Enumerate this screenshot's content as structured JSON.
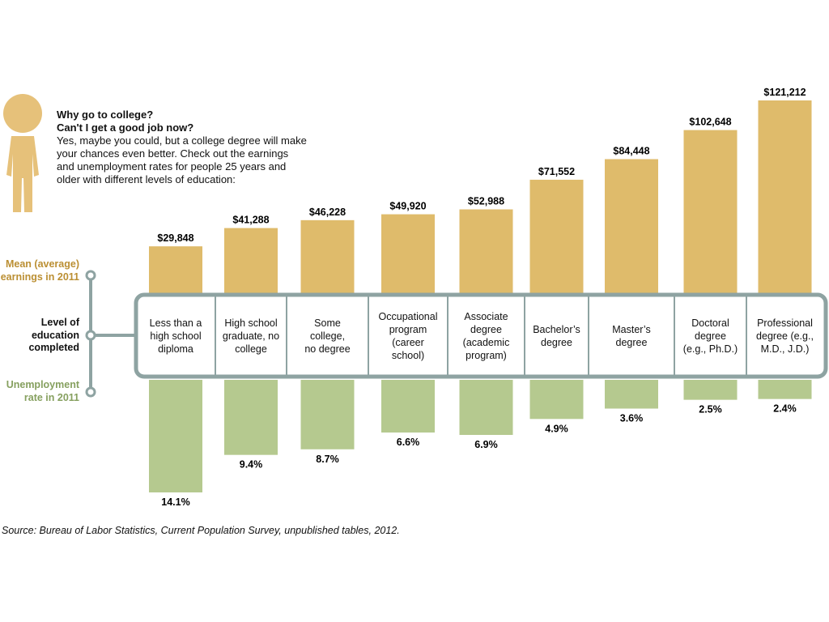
{
  "colors": {
    "earnings": "#dfbb6b",
    "unemployment": "#b5c98f",
    "frame": "#8ea3a2",
    "earnings_label": "#bb8f33",
    "unemployment_label": "#86a05f",
    "person": "#e6c17a"
  },
  "intro": {
    "q1": "Why go to college?",
    "q2": "Can't I get a good job now?",
    "body": "Yes, maybe you could, but a college degree will make your chances even better. Check out the earnings and unemployment rates for people 25 years and older with different levels of education:"
  },
  "labels": {
    "earnings": "Mean (average) earnings in 2011",
    "level": "Level of education completed",
    "unemployment": "Unemployment rate in 2011"
  },
  "source": "Source: Bureau of Labor Statistics, Current Population Survey, unpublished tables, 2012.",
  "chart_data": {
    "type": "bar",
    "categories": [
      [
        "Less than a",
        "high school",
        "diploma"
      ],
      [
        "High school",
        "graduate, no",
        "college"
      ],
      [
        "Some",
        "college,",
        "no degree"
      ],
      [
        "Occupational",
        "program",
        "(career",
        "school)"
      ],
      [
        "Associate",
        "degree",
        "(academic",
        "program)"
      ],
      [
        "Bachelor’s",
        "degree"
      ],
      [
        "Master’s",
        "degree"
      ],
      [
        "Doctoral",
        "degree",
        "(e.g., Ph.D.)"
      ],
      [
        "Professional",
        "degree (e.g.,",
        "M.D., J.D.)"
      ]
    ],
    "series": [
      {
        "name": "Mean (average) earnings in 2011",
        "values": [
          29848,
          41288,
          46228,
          49920,
          52988,
          71552,
          84448,
          102648,
          121212
        ],
        "value_labels": [
          "$29,848",
          "$41,288",
          "$46,228",
          "$49,920",
          "$52,988",
          "$71,552",
          "$84,448",
          "$102,648",
          "$121,212"
        ]
      },
      {
        "name": "Unemployment rate in 2011",
        "values": [
          14.1,
          9.4,
          8.7,
          6.6,
          6.9,
          4.9,
          3.6,
          2.5,
          2.4
        ],
        "value_labels": [
          "14.1%",
          "9.4%",
          "8.7%",
          "6.6%",
          "6.9%",
          "4.9%",
          "3.6%",
          "2.5%",
          "2.4%"
        ]
      }
    ]
  }
}
